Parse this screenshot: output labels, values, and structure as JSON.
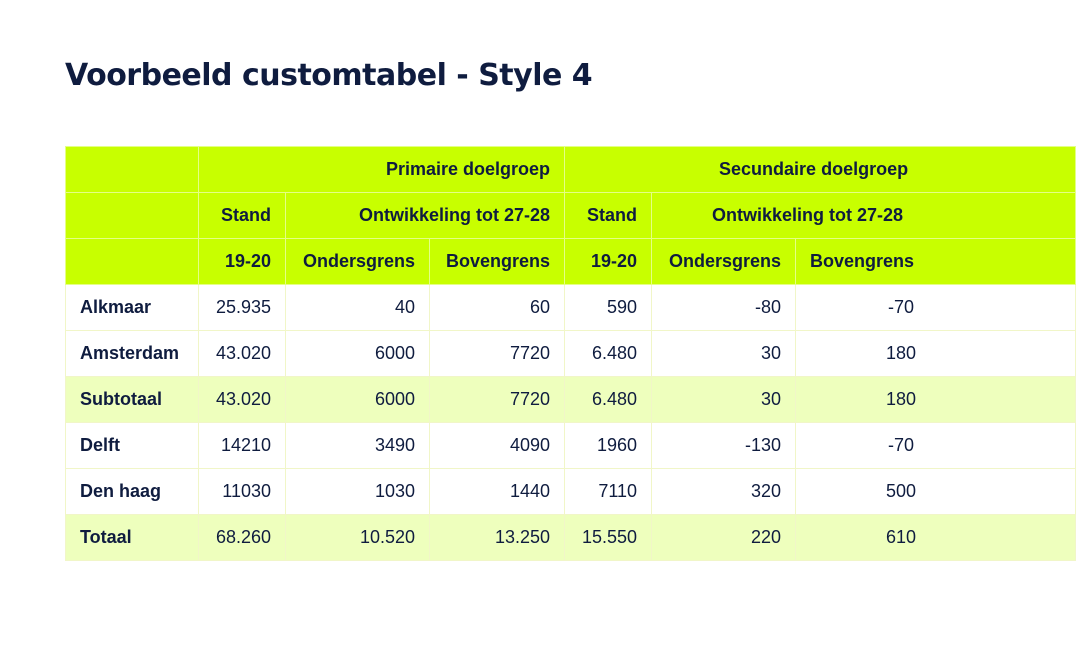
{
  "page": {
    "title": "Voorbeeld customtabel - Style 4"
  },
  "table": {
    "header_row1": {
      "group1": "Primaire doelgroep",
      "group2": "Secundaire doelgroep"
    },
    "header_row2": {
      "stand1": "Stand",
      "dev1": "Ontwikkeling tot 27-28",
      "stand2": "Stand",
      "dev2": "Ontwikkeling tot 27-28"
    },
    "header_row3": {
      "year1": "19-20",
      "lower1": "Ondersgrens",
      "upper1": "Bovengrens",
      "year2": "19-20",
      "lower2": "Ondersgrens",
      "upper2": "Bovengrens"
    },
    "rows": [
      {
        "label": "Alkmaar",
        "cells": [
          "25.935",
          "40",
          "60",
          "590",
          "-80",
          "-70"
        ]
      },
      {
        "label": "Amsterdam",
        "cells": [
          "43.020",
          "6000",
          "7720",
          "6.480",
          "30",
          "180"
        ]
      },
      {
        "label": "Subtotaal",
        "cells": [
          "43.020",
          "6000",
          "7720",
          "6.480",
          "30",
          "180"
        ]
      },
      {
        "label": "Delft",
        "cells": [
          "14210",
          "3490",
          "4090",
          "1960",
          "-130",
          "-70"
        ]
      },
      {
        "label": "Den haag",
        "cells": [
          "11030",
          "1030",
          "1440",
          "7110",
          "320",
          "500"
        ]
      },
      {
        "label": "Totaal",
        "cells": [
          "68.260",
          "10.520",
          "13.250",
          "15.550",
          "220",
          "610"
        ]
      }
    ]
  },
  "colors": {
    "header": "#c8ff00",
    "subtotal": "#eeffbd",
    "text": "#0f1c3f"
  }
}
